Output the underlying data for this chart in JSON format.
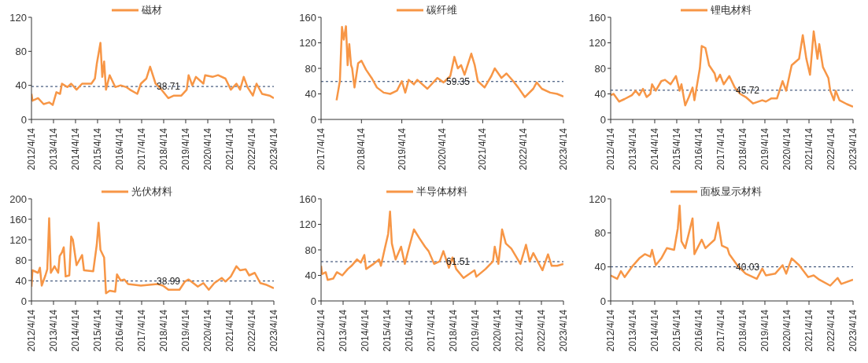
{
  "chart_data": [
    {
      "type": "line",
      "legend": "top",
      "ylim": [
        0,
        120
      ],
      "yticks": [
        0,
        40,
        80,
        120
      ],
      "xlim": [
        "2012-04-14",
        "2023-04-14"
      ],
      "xticks": [
        {
          "value": "2012-04-14",
          "label": "2012/4/14"
        },
        {
          "value": "2013-04-14",
          "label": "2013/4/14"
        },
        {
          "value": "2014-04-14",
          "label": "2014/4/14"
        },
        {
          "value": "2015-04-14",
          "label": "2015/4/14"
        },
        {
          "value": "2016-04-14",
          "label": "2016/4/14"
        },
        {
          "value": "2017-04-14",
          "label": "2017/4/14"
        },
        {
          "value": "2018-04-14",
          "label": "2018/4/14"
        },
        {
          "value": "2019-04-14",
          "label": "2019/4/14"
        },
        {
          "value": "2020-04-14",
          "label": "2020/4/14"
        },
        {
          "value": "2021-04-14",
          "label": "2021/4/14"
        },
        {
          "value": "2022-04-14",
          "label": "2022/4/14"
        },
        {
          "value": "2023-04-14",
          "label": "2023/4/14"
        }
      ],
      "ref_lines": [
        {
          "axis": "y",
          "value": 38.71,
          "label": "38.71",
          "color": "#1f3864",
          "line_style": "dashed"
        }
      ],
      "series": [
        {
          "name": "磁材",
          "color": "#f79646",
          "x": [
            "2012-04-14",
            "2012-05",
            "2012-08",
            "2012-11",
            "2013-02",
            "2013-04",
            "2013-06",
            "2013-08",
            "2013-09",
            "2013-12",
            "2014-02",
            "2014-05",
            "2014-08",
            "2015-01",
            "2015-03",
            "2015-04",
            "2015-06",
            "2015-07",
            "2015-08",
            "2015-09",
            "2015-11",
            "2016-02",
            "2016-05",
            "2016-08",
            "2016-10",
            "2017-02",
            "2017-04",
            "2017-07",
            "2017-09",
            "2017-12",
            "2018-02",
            "2018-07",
            "2018-10",
            "2019-02",
            "2019-05",
            "2019-06",
            "2019-08",
            "2019-10",
            "2020-02",
            "2020-03",
            "2020-07",
            "2020-10",
            "2021-02",
            "2021-05",
            "2021-08",
            "2021-10",
            "2021-12",
            "2022-02",
            "2022-05",
            "2022-07",
            "2022-10",
            "2023-02",
            "2023-04-14"
          ],
          "values": [
            30,
            22,
            25,
            18,
            20,
            17,
            32,
            30,
            42,
            38,
            42,
            35,
            42,
            42,
            48,
            65,
            90,
            50,
            68,
            35,
            52,
            38,
            40,
            38,
            35,
            30,
            42,
            48,
            62,
            42,
            38,
            25,
            28,
            28,
            35,
            52,
            40,
            50,
            42,
            52,
            50,
            52,
            48,
            35,
            42,
            35,
            50,
            38,
            28,
            42,
            30,
            28,
            25
          ]
        }
      ]
    },
    {
      "type": "line",
      "legend": "top",
      "ylim": [
        0,
        160
      ],
      "yticks": [
        0,
        40,
        80,
        120,
        160
      ],
      "xlim": [
        "2017-04-14",
        "2023-04-14"
      ],
      "xticks": [
        {
          "value": "2017-04-14",
          "label": "2017/4/14"
        },
        {
          "value": "2018-04-14",
          "label": "2018/4/14"
        },
        {
          "value": "2019-04-14",
          "label": "2019/4/14"
        },
        {
          "value": "2020-04-14",
          "label": "2020/4/14"
        },
        {
          "value": "2021-04-14",
          "label": "2021/4/14"
        },
        {
          "value": "2022-04-14",
          "label": "2022/4/14"
        },
        {
          "value": "2023-04-14",
          "label": "2023/4/14"
        }
      ],
      "ref_lines": [
        {
          "axis": "y",
          "value": 59.35,
          "label": "59.35",
          "color": "#1f3864",
          "line_style": "dashed"
        }
      ],
      "series": [
        {
          "name": "碳纤维",
          "color": "#f79646",
          "x": [
            "2017-09-01",
            "2017-10-01",
            "2017-10-20",
            "2017-11-05",
            "2017-11-25",
            "2017-12-10",
            "2017-12-25",
            "2018-01-10",
            "2018-01-20",
            "2018-02-10",
            "2018-03-15",
            "2018-04-14",
            "2018-05-25",
            "2018-07-15",
            "2018-09-01",
            "2018-11-01",
            "2018-12-30",
            "2019-03-01",
            "2019-04-14",
            "2019-05-15",
            "2019-06-15",
            "2019-08-01",
            "2019-09-01",
            "2019-12-01",
            "2020-03-01",
            "2020-04-25",
            "2020-06-25",
            "2020-08-01",
            "2020-09-01",
            "2020-10-01",
            "2020-11-01",
            "2021-01-01",
            "2021-02-01",
            "2021-03-01",
            "2021-05-01",
            "2021-07-01",
            "2021-08-01",
            "2021-10-01",
            "2021-11-15",
            "2022-01-15",
            "2022-03-01",
            "2022-04-30",
            "2022-07-15",
            "2022-08-15",
            "2022-10-01",
            "2022-12-15",
            "2023-02-15",
            "2023-04-14"
          ],
          "values": [
            30,
            60,
            145,
            125,
            146,
            85,
            118,
            85,
            80,
            50,
            88,
            92,
            78,
            65,
            50,
            42,
            40,
            45,
            60,
            42,
            62,
            55,
            62,
            48,
            65,
            58,
            68,
            98,
            80,
            85,
            70,
            103,
            85,
            60,
            50,
            68,
            80,
            65,
            72,
            60,
            50,
            35,
            48,
            58,
            48,
            42,
            40,
            36
          ]
        }
      ]
    },
    {
      "type": "line",
      "legend": "top",
      "ylim": [
        0,
        160
      ],
      "yticks": [
        0,
        40,
        80,
        120,
        160
      ],
      "xlim": [
        "2012-04-14",
        "2023-04-14"
      ],
      "xticks": [
        {
          "value": "2012-04-14",
          "label": "2012/4/14"
        },
        {
          "value": "2013-04-14",
          "label": "2013/4/14"
        },
        {
          "value": "2014-04-14",
          "label": "2014/4/14"
        },
        {
          "value": "2015-04-14",
          "label": "2015/4/14"
        },
        {
          "value": "2016-04-14",
          "label": "2016/4/14"
        },
        {
          "value": "2017-04-14",
          "label": "2017/4/14"
        },
        {
          "value": "2018-04-14",
          "label": "2018/4/14"
        },
        {
          "value": "2019-04-14",
          "label": "2019/4/14"
        },
        {
          "value": "2020-04-14",
          "label": "2020/4/14"
        },
        {
          "value": "2021-04-14",
          "label": "2021/4/14"
        },
        {
          "value": "2022-04-14",
          "label": "2022/4/14"
        },
        {
          "value": "2023-04-14",
          "label": "2023/4/14"
        }
      ],
      "ref_lines": [
        {
          "axis": "y",
          "value": 45.72,
          "label": "45.72",
          "color": "#1f3864",
          "line_style": "dashed"
        }
      ],
      "series": [
        {
          "name": "锂电材料",
          "color": "#f79646",
          "x": [
            "2012-04-14",
            "2012-06",
            "2012-09",
            "2012-12",
            "2013-04",
            "2013-06",
            "2013-08",
            "2013-10",
            "2013-12",
            "2014-02",
            "2014-03",
            "2014-05",
            "2014-08",
            "2014-10",
            "2015-01",
            "2015-04",
            "2015-06",
            "2015-07",
            "2015-09",
            "2015-11",
            "2016-01",
            "2016-02",
            "2016-05",
            "2016-06",
            "2016-08",
            "2016-10",
            "2017-01",
            "2017-02",
            "2017-04",
            "2017-06",
            "2017-09",
            "2017-12",
            "2018-03",
            "2018-06",
            "2018-10",
            "2019-03",
            "2019-05",
            "2019-08",
            "2019-11",
            "2020-02",
            "2020-04",
            "2020-07",
            "2020-11",
            "2021-01",
            "2021-03",
            "2021-05",
            "2021-07",
            "2021-09",
            "2021-10",
            "2021-12",
            "2022-03",
            "2022-04",
            "2022-06",
            "2022-07",
            "2022-09",
            "2023-01",
            "2023-04-14"
          ],
          "values": [
            38,
            40,
            28,
            32,
            38,
            45,
            38,
            48,
            35,
            40,
            55,
            45,
            60,
            62,
            55,
            68,
            45,
            55,
            22,
            35,
            50,
            30,
            80,
            115,
            112,
            85,
            72,
            60,
            70,
            55,
            68,
            50,
            40,
            35,
            25,
            30,
            28,
            33,
            33,
            60,
            45,
            85,
            95,
            132,
            95,
            70,
            138,
            95,
            118,
            82,
            65,
            45,
            30,
            45,
            30,
            24,
            20
          ]
        }
      ]
    },
    {
      "type": "line",
      "legend": "top",
      "ylim": [
        0,
        200
      ],
      "yticks": [
        0,
        40,
        80,
        120,
        160,
        200
      ],
      "xlim": [
        "2012-04-14",
        "2023-04-14"
      ],
      "xticks": [
        {
          "value": "2012-04-14",
          "label": "2012/4/14"
        },
        {
          "value": "2013-04-14",
          "label": "2013/4/14"
        },
        {
          "value": "2014-04-14",
          "label": "2014/4/14"
        },
        {
          "value": "2015-04-14",
          "label": "2015/4/14"
        },
        {
          "value": "2016-04-14",
          "label": "2016/4/14"
        },
        {
          "value": "2017-04-14",
          "label": "2017/4/14"
        },
        {
          "value": "2018-04-14",
          "label": "2018/4/14"
        },
        {
          "value": "2019-04-14",
          "label": "2019/4/14"
        },
        {
          "value": "2020-04-14",
          "label": "2020/4/14"
        },
        {
          "value": "2021-04-14",
          "label": "2021/4/14"
        },
        {
          "value": "2022-04-14",
          "label": "2022/4/14"
        },
        {
          "value": "2023-04-14",
          "label": "2023/4/14"
        }
      ],
      "ref_lines": [
        {
          "axis": "y",
          "value": 38.99,
          "label": "38.99",
          "color": "#1f3864",
          "line_style": "dashed"
        }
      ],
      "series": [
        {
          "name": "光伏材料",
          "color": "#f79646",
          "x": [
            "2012-04-14",
            "2012-05",
            "2012-08",
            "2012-09",
            "2012-10",
            "2012-12",
            "2013-01",
            "2013-02",
            "2013-03",
            "2013-05",
            "2013-07-01",
            "2013-07-25",
            "2013-09",
            "2013-10",
            "2013-11",
            "2014-01",
            "2014-02",
            "2014-03",
            "2014-05",
            "2014-08",
            "2014-09",
            "2015-02",
            "2015-04",
            "2015-05",
            "2015-06",
            "2015-08",
            "2015-09",
            "2015-11",
            "2016-02",
            "2016-03",
            "2016-05",
            "2016-07",
            "2016-09",
            "2017-04",
            "2018-01",
            "2018-04",
            "2018-07",
            "2019-01",
            "2019-04",
            "2019-06",
            "2019-11",
            "2020-02",
            "2020-05",
            "2020-08",
            "2020-12",
            "2021-02",
            "2021-05",
            "2021-08",
            "2021-10",
            "2022-01",
            "2022-03",
            "2022-06",
            "2022-09",
            "2022-12",
            "2023-04-14"
          ],
          "values": [
            28,
            60,
            55,
            65,
            30,
            50,
            62,
            162,
            55,
            68,
            55,
            88,
            95,
            105,
            48,
            50,
            126,
            120,
            70,
            90,
            60,
            58,
            110,
            153,
            100,
            85,
            15,
            20,
            18,
            52,
            40,
            42,
            33,
            30,
            33,
            30,
            22,
            22,
            38,
            42,
            28,
            35,
            22,
            35,
            45,
            38,
            48,
            68,
            60,
            62,
            50,
            55,
            35,
            32,
            25
          ]
        }
      ]
    },
    {
      "type": "line",
      "legend": "top",
      "ylim": [
        0,
        160
      ],
      "yticks": [
        0,
        40,
        80,
        120,
        160
      ],
      "xlim": [
        "2012-04-14",
        "2023-04-14"
      ],
      "xticks": [
        {
          "value": "2012-04-14",
          "label": "2012/4/14"
        },
        {
          "value": "2013-04-14",
          "label": "2013/4/14"
        },
        {
          "value": "2014-04-14",
          "label": "2014/4/14"
        },
        {
          "value": "2015-04-14",
          "label": "2015/4/14"
        },
        {
          "value": "2016-04-14",
          "label": "2016/4/14"
        },
        {
          "value": "2017-04-14",
          "label": "2017/4/14"
        },
        {
          "value": "2018-04-14",
          "label": "2018/4/14"
        },
        {
          "value": "2019-04-14",
          "label": "2019/4/14"
        },
        {
          "value": "2020-04-14",
          "label": "2020/4/14"
        },
        {
          "value": "2021-04-14",
          "label": "2021/4/14"
        },
        {
          "value": "2022-04-14",
          "label": "2022/4/14"
        },
        {
          "value": "2023-04-14",
          "label": "2023/4/14"
        }
      ],
      "ref_lines": [
        {
          "axis": "y",
          "value": 61.51,
          "label": "61.51",
          "color": "#1f3864",
          "line_style": "dashed"
        }
      ],
      "series": [
        {
          "name": "半导体材料",
          "color": "#f79646",
          "x": [
            "2012-04-14",
            "2012-05",
            "2012-07",
            "2012-08",
            "2012-11",
            "2013-01",
            "2013-04",
            "2013-07",
            "2013-09",
            "2013-12",
            "2014-02",
            "2014-04",
            "2014-05",
            "2014-09",
            "2014-12",
            "2015-01",
            "2015-03",
            "2015-05",
            "2015-06",
            "2015-07",
            "2015-09",
            "2015-12",
            "2016-02",
            "2016-04",
            "2016-07",
            "2016-10",
            "2017-01",
            "2017-03",
            "2017-06",
            "2017-09",
            "2017-11",
            "2018-02",
            "2018-04",
            "2018-06",
            "2018-10",
            "2019-04",
            "2019-05",
            "2019-10",
            "2020-02",
            "2020-03",
            "2020-05",
            "2020-07",
            "2020-09",
            "2020-12",
            "2021-05",
            "2021-08",
            "2021-10",
            "2021-12",
            "2022-05",
            "2022-08",
            "2022-10",
            "2023-01",
            "2023-04-14"
          ],
          "values": [
            55,
            42,
            45,
            33,
            35,
            45,
            40,
            50,
            55,
            65,
            60,
            72,
            50,
            58,
            65,
            55,
            80,
            105,
            140,
            90,
            65,
            85,
            58,
            80,
            112,
            98,
            85,
            78,
            58,
            62,
            78,
            52,
            68,
            50,
            36,
            48,
            38,
            50,
            62,
            85,
            58,
            112,
            90,
            82,
            58,
            88,
            62,
            75,
            48,
            73,
            55,
            55,
            58
          ]
        }
      ]
    },
    {
      "type": "line",
      "legend": "top",
      "ylim": [
        0,
        120
      ],
      "yticks": [
        0,
        40,
        80,
        120
      ],
      "xlim": [
        "2012-04-14",
        "2023-04-14"
      ],
      "xticks": [
        {
          "value": "2012-04-14",
          "label": "2012/4/14"
        },
        {
          "value": "2013-04-14",
          "label": "2013/4/14"
        },
        {
          "value": "2014-04-14",
          "label": "2014/4/14"
        },
        {
          "value": "2015-04-14",
          "label": "2015/4/14"
        },
        {
          "value": "2016-04-14",
          "label": "2016/4/14"
        },
        {
          "value": "2017-04-14",
          "label": "2017/4/14"
        },
        {
          "value": "2018-04-14",
          "label": "2018/4/14"
        },
        {
          "value": "2019-04-14",
          "label": "2019/4/14"
        },
        {
          "value": "2020-04-14",
          "label": "2020/4/14"
        },
        {
          "value": "2021-04-14",
          "label": "2021/4/14"
        },
        {
          "value": "2022-04-14",
          "label": "2022/4/14"
        },
        {
          "value": "2023-04-14",
          "label": "2023/4/14"
        }
      ],
      "ref_lines": [
        {
          "axis": "y",
          "value": 40.03,
          "label": "40.03",
          "color": "#1f3864",
          "line_style": "dashed"
        }
      ],
      "series": [
        {
          "name": "面板显示材料",
          "color": "#f79646",
          "x": [
            "2012-04-14",
            "2012-08",
            "2012-10",
            "2012-12",
            "2013-04",
            "2013-08",
            "2013-11",
            "2014-02",
            "2014-03",
            "2014-05",
            "2014-08",
            "2014-11",
            "2015-03",
            "2015-05",
            "2015-06",
            "2015-07",
            "2015-09",
            "2016-01",
            "2016-02",
            "2016-06",
            "2016-08",
            "2017-01",
            "2017-03",
            "2017-05",
            "2017-08",
            "2017-09",
            "2018-02",
            "2018-06",
            "2018-12",
            "2019-03",
            "2019-05",
            "2019-10",
            "2020-02",
            "2020-04",
            "2020-07",
            "2020-11",
            "2021-04",
            "2021-07",
            "2021-10",
            "2022-04",
            "2022-08",
            "2022-10",
            "2023-04-14"
          ],
          "values": [
            30,
            26,
            35,
            28,
            40,
            50,
            55,
            52,
            60,
            42,
            50,
            62,
            60,
            85,
            112,
            70,
            62,
            97,
            55,
            72,
            62,
            72,
            92,
            65,
            62,
            55,
            40,
            32,
            26,
            38,
            30,
            32,
            42,
            32,
            50,
            42,
            28,
            30,
            25,
            18,
            27,
            20,
            25
          ]
        }
      ]
    }
  ]
}
